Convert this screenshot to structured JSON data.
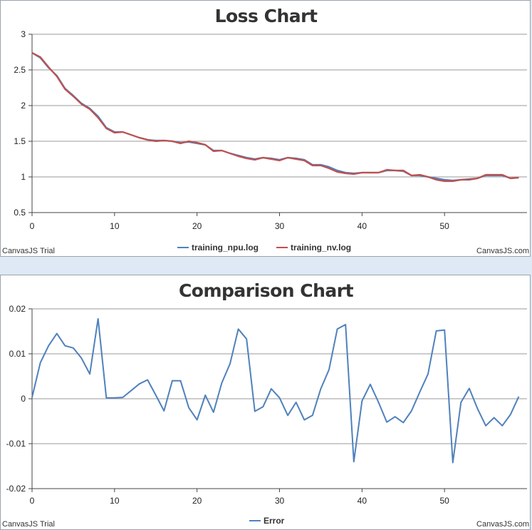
{
  "credits": {
    "left": "CanvasJS Trial",
    "right": "CanvasJS.com"
  },
  "colors": {
    "npu": "#4f81bc",
    "nv": "#c0504e",
    "error": "#4f81bc"
  },
  "chart_data": [
    {
      "type": "line",
      "title": "Loss Chart",
      "xlabel": "",
      "ylabel": "",
      "xlim": [
        0,
        60
      ],
      "ylim": [
        0.5,
        3
      ],
      "xticks": [
        "0",
        "10",
        "20",
        "30",
        "40",
        "50"
      ],
      "yticks": [
        "0.5",
        "1",
        "1.5",
        "2",
        "2.5",
        "3"
      ],
      "grid": true,
      "legend": "bottom-center",
      "series": [
        {
          "name": "training_npu.log",
          "x": [
            0,
            1,
            2,
            3,
            4,
            5,
            6,
            7,
            8,
            9,
            10,
            11,
            12,
            13,
            14,
            15,
            16,
            17,
            18,
            19,
            20,
            21,
            22,
            23,
            24,
            25,
            26,
            27,
            28,
            29,
            30,
            31,
            32,
            33,
            34,
            35,
            36,
            37,
            38,
            39,
            40,
            41,
            42,
            43,
            44,
            45,
            46,
            47,
            48,
            49,
            50,
            51,
            52,
            53,
            54,
            55,
            56,
            57,
            58,
            59
          ],
          "values": [
            2.74,
            2.67,
            2.53,
            2.42,
            2.24,
            2.14,
            2.03,
            1.96,
            1.85,
            1.69,
            1.63,
            1.63,
            1.59,
            1.55,
            1.52,
            1.51,
            1.51,
            1.5,
            1.48,
            1.49,
            1.47,
            1.45,
            1.37,
            1.37,
            1.33,
            1.3,
            1.27,
            1.25,
            1.27,
            1.26,
            1.24,
            1.27,
            1.26,
            1.24,
            1.17,
            1.17,
            1.14,
            1.09,
            1.06,
            1.05,
            1.06,
            1.06,
            1.06,
            1.09,
            1.09,
            1.08,
            1.02,
            1.02,
            1.0,
            0.98,
            0.96,
            0.95,
            0.96,
            0.97,
            0.98,
            1.02,
            1.02,
            1.02,
            0.98,
            0.99
          ]
        },
        {
          "name": "training_nv.log",
          "x": [
            0,
            1,
            2,
            3,
            4,
            5,
            6,
            7,
            8,
            9,
            10,
            11,
            12,
            13,
            14,
            15,
            16,
            17,
            18,
            19,
            20,
            21,
            22,
            23,
            24,
            25,
            26,
            27,
            28,
            29,
            30,
            31,
            32,
            33,
            34,
            35,
            36,
            37,
            38,
            39,
            40,
            41,
            42,
            43,
            44,
            45,
            46,
            47,
            48,
            49,
            50,
            51,
            52,
            53,
            54,
            55,
            56,
            57,
            58,
            59
          ],
          "values": [
            2.74,
            2.68,
            2.54,
            2.41,
            2.23,
            2.13,
            2.02,
            1.95,
            1.83,
            1.68,
            1.62,
            1.63,
            1.59,
            1.55,
            1.52,
            1.5,
            1.51,
            1.5,
            1.47,
            1.5,
            1.48,
            1.45,
            1.36,
            1.37,
            1.33,
            1.29,
            1.26,
            1.24,
            1.27,
            1.25,
            1.23,
            1.27,
            1.25,
            1.23,
            1.16,
            1.16,
            1.12,
            1.07,
            1.05,
            1.04,
            1.06,
            1.06,
            1.06,
            1.1,
            1.09,
            1.09,
            1.02,
            1.03,
            1.0,
            0.96,
            0.94,
            0.94,
            0.96,
            0.96,
            0.98,
            1.03,
            1.03,
            1.03,
            0.98,
            0.99
          ]
        }
      ]
    },
    {
      "type": "line",
      "title": "Comparison Chart",
      "xlabel": "",
      "ylabel": "",
      "xlim": [
        0,
        60
      ],
      "ylim": [
        -0.02,
        0.02
      ],
      "xticks": [
        "0",
        "10",
        "20",
        "30",
        "40",
        "50"
      ],
      "yticks": [
        "-0.02",
        "-0.01",
        "0",
        "0.01",
        "0.02"
      ],
      "grid": true,
      "legend": "bottom-center",
      "series": [
        {
          "name": "Error",
          "x": [
            0,
            1,
            2,
            3,
            4,
            5,
            6,
            7,
            8,
            9,
            10,
            11,
            12,
            13,
            14,
            15,
            16,
            17,
            18,
            19,
            20,
            21,
            22,
            23,
            24,
            25,
            26,
            27,
            28,
            29,
            30,
            31,
            32,
            33,
            34,
            35,
            36,
            37,
            38,
            39,
            40,
            41,
            42,
            43,
            44,
            45,
            46,
            47,
            48,
            49,
            50,
            51,
            52,
            53,
            54,
            55,
            56,
            57,
            58,
            59
          ],
          "values": [
            0.0003,
            0.008,
            0.0118,
            0.0145,
            0.0118,
            0.0113,
            0.009,
            0.0055,
            0.0178,
            0.0002,
            0.0002,
            0.0003,
            0.0018,
            0.0033,
            0.0042,
            0.0008,
            -0.0027,
            0.004,
            0.004,
            -0.002,
            -0.0047,
            0.0008,
            -0.003,
            0.0035,
            0.0078,
            0.0155,
            0.0133,
            -0.0028,
            -0.0018,
            0.0022,
            0.0002,
            -0.0037,
            -0.0008,
            -0.0047,
            -0.0037,
            0.0022,
            0.0065,
            0.0155,
            0.0165,
            -0.014,
            -0.0005,
            0.0032,
            -0.0008,
            -0.0052,
            -0.004,
            -0.0053,
            -0.0027,
            0.0015,
            0.0055,
            0.0151,
            0.0153,
            -0.0142,
            -0.0008,
            0.0023,
            -0.0022,
            -0.006,
            -0.0042,
            -0.006,
            -0.0035,
            0.0005
          ]
        }
      ]
    }
  ]
}
